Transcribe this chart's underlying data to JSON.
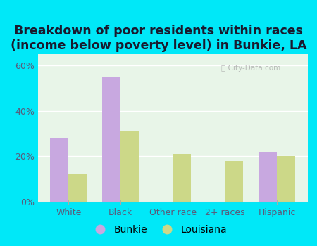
{
  "title": "Breakdown of poor residents within races\n(income below poverty level) in Bunkie, LA",
  "categories": [
    "White",
    "Black",
    "Other race",
    "2+ races",
    "Hispanic"
  ],
  "bunkie_values": [
    28,
    55,
    0,
    0,
    22
  ],
  "louisiana_values": [
    12,
    31,
    21,
    18,
    20
  ],
  "bunkie_color": "#c8a8e0",
  "louisiana_color": "#ccd888",
  "plot_bg_color": "#e8f5e8",
  "outer_bg_color": "#00e8f8",
  "ylim": [
    0,
    65
  ],
  "yticks": [
    0,
    20,
    40,
    60
  ],
  "ytick_labels": [
    "0%",
    "20%",
    "40%",
    "60%"
  ],
  "bar_width": 0.35,
  "legend_labels": [
    "Bunkie",
    "Louisiana"
  ],
  "title_fontsize": 12.5,
  "tick_fontsize": 9,
  "legend_fontsize": 10,
  "title_color": "#1a1a2e",
  "tick_color": "#5a5a7a",
  "watermark_text": "City-Data.com"
}
